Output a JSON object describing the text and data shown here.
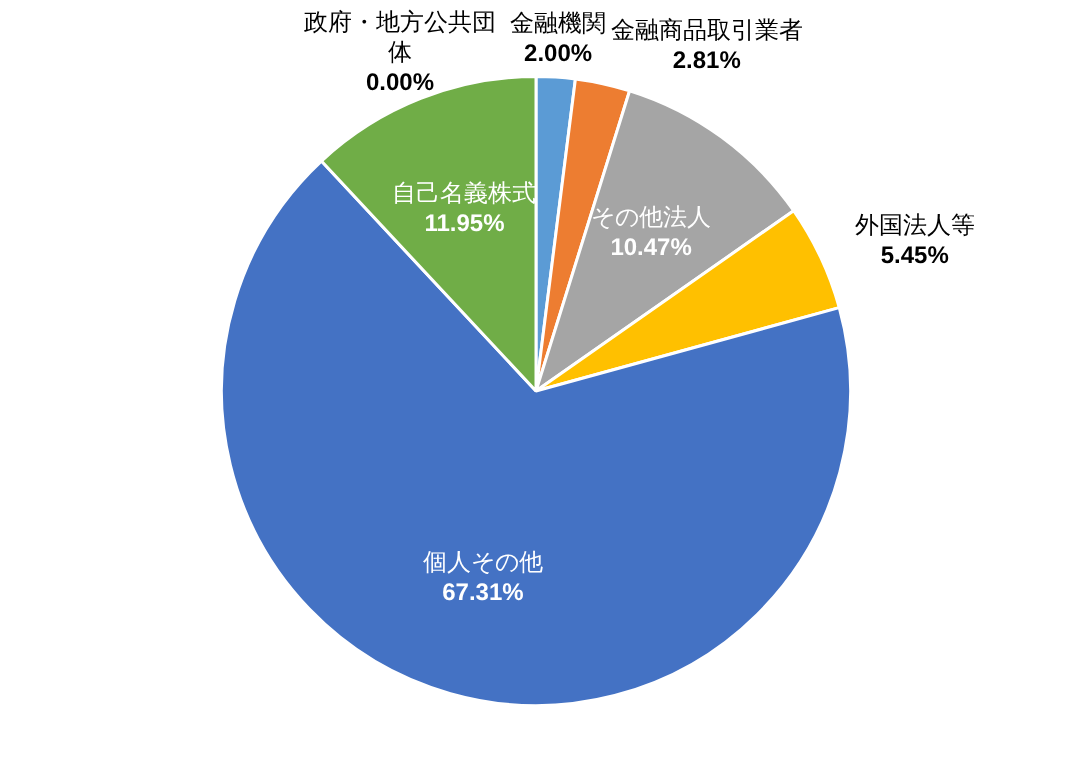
{
  "chart_data": {
    "type": "pie",
    "categories": [
      "政府・地方公共団体",
      "金融機関",
      "金融商品取引業者",
      "その他法人",
      "外国法人等",
      "個人その他",
      "自己名義株式"
    ],
    "values": [
      0.0,
      2.0,
      2.81,
      10.47,
      5.45,
      67.31,
      11.95
    ],
    "value_labels": [
      "0.00%",
      "2.00%",
      "2.81%",
      "10.47%",
      "5.45%",
      "67.31%",
      "11.95%"
    ],
    "colors": [
      "#264478",
      "#5b9bd5",
      "#ed7d31",
      "#a5a5a5",
      "#ffc000",
      "#4472c4",
      "#70ad47"
    ],
    "legend": false
  }
}
